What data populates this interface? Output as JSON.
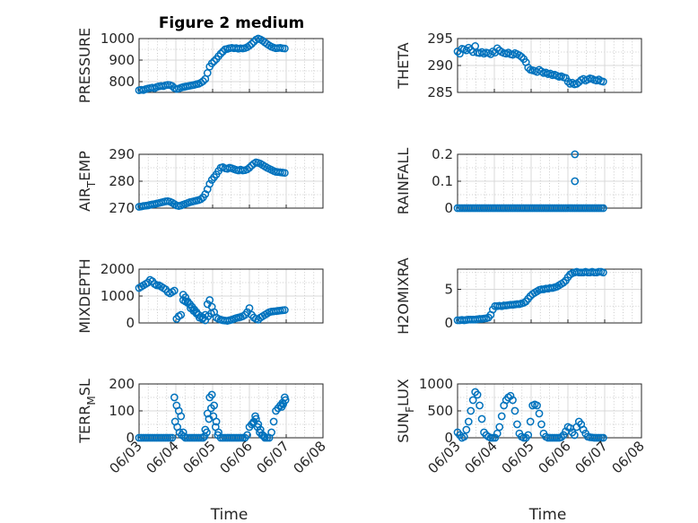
{
  "figure": {
    "title": "Figure 2 medium"
  },
  "x_axis": {
    "label": "Time",
    "ticks": [
      "06/03",
      "06/04",
      "06/05",
      "06/06",
      "06/07",
      "06/08"
    ],
    "range": [
      "06/03 00:00",
      "06/08 00:00"
    ]
  },
  "series_color": "#0072BD",
  "chart_data": [
    {
      "type": "scatter",
      "ylabel": "PRESSURE",
      "ylabel_parts": [
        "PRESSURE"
      ],
      "ylim": [
        750,
        1000
      ],
      "yticks": [
        800,
        900,
        1000
      ],
      "minor_y": [
        750,
        850,
        950
      ],
      "x_days": [
        0.0,
        0.06,
        0.12,
        0.18,
        0.24,
        0.3,
        0.36,
        0.42,
        0.48,
        0.54,
        0.6,
        0.66,
        0.72,
        0.78,
        0.84,
        0.9,
        0.96,
        1.02,
        1.08,
        1.14,
        1.2,
        1.26,
        1.32,
        1.38,
        1.44,
        1.5,
        1.56,
        1.62,
        1.68,
        1.74,
        1.8,
        1.86,
        1.92,
        1.98,
        2.04,
        2.1,
        2.16,
        2.22,
        2.28,
        2.34,
        2.4,
        2.46,
        2.52,
        2.58,
        2.64,
        2.7,
        2.76,
        2.82,
        2.88,
        2.94,
        3.0,
        3.06,
        3.12,
        3.18,
        3.24,
        3.3,
        3.36,
        3.42,
        3.48,
        3.54,
        3.6,
        3.66,
        3.72,
        3.78,
        3.84,
        3.9,
        3.96
      ],
      "y": [
        760,
        762,
        761,
        765,
        768,
        770,
        772,
        769,
        775,
        778,
        780,
        779,
        783,
        785,
        784,
        780,
        770,
        766,
        768,
        772,
        775,
        777,
        779,
        781,
        783,
        785,
        788,
        790,
        795,
        802,
        812,
        840,
        870,
        885,
        895,
        905,
        918,
        930,
        940,
        950,
        952,
        955,
        957,
        955,
        956,
        953,
        955,
        954,
        956,
        960,
        967,
        975,
        985,
        995,
        1000,
        996,
        990,
        982,
        975,
        968,
        962,
        958,
        955,
        956,
        957,
        955,
        954
      ]
    },
    {
      "type": "scatter",
      "ylabel": "THETA",
      "ylabel_parts": [
        "THETA"
      ],
      "ylim": [
        285,
        295
      ],
      "yticks": [
        285,
        290,
        295
      ],
      "minor_y": [
        287.5,
        292.5
      ],
      "x_days": [
        0.0,
        0.06,
        0.12,
        0.18,
        0.24,
        0.3,
        0.36,
        0.42,
        0.48,
        0.54,
        0.6,
        0.66,
        0.72,
        0.78,
        0.84,
        0.9,
        0.96,
        1.02,
        1.08,
        1.14,
        1.2,
        1.26,
        1.32,
        1.38,
        1.44,
        1.5,
        1.56,
        1.62,
        1.68,
        1.74,
        1.8,
        1.86,
        1.92,
        1.98,
        2.04,
        2.1,
        2.16,
        2.22,
        2.28,
        2.34,
        2.4,
        2.46,
        2.52,
        2.58,
        2.64,
        2.7,
        2.76,
        2.82,
        2.88,
        2.94,
        3.0,
        3.06,
        3.12,
        3.18,
        3.24,
        3.3,
        3.36,
        3.42,
        3.48,
        3.54,
        3.6,
        3.66,
        3.72,
        3.78,
        3.84,
        3.9,
        3.96
      ],
      "y": [
        292.6,
        292.2,
        293.1,
        293.0,
        292.8,
        293.3,
        292.9,
        292.5,
        293.6,
        292.4,
        292.3,
        292.5,
        292.2,
        292.4,
        292.3,
        292.1,
        292.6,
        292.4,
        293.2,
        292.8,
        292.5,
        292.3,
        292.2,
        292.4,
        292.1,
        292.0,
        292.3,
        292.1,
        291.9,
        291.6,
        291.2,
        290.6,
        289.6,
        289.2,
        289.1,
        289.0,
        288.8,
        289.2,
        288.9,
        288.6,
        288.7,
        288.4,
        288.5,
        288.2,
        288.3,
        288.1,
        287.9,
        288.0,
        287.8,
        287.7,
        287.0,
        286.6,
        286.8,
        286.5,
        286.6,
        286.9,
        287.3,
        287.5,
        287.2,
        287.4,
        287.6,
        287.5,
        287.3,
        287.2,
        287.4,
        287.1,
        287.0
      ]
    },
    {
      "type": "scatter",
      "ylabel": "AIR_TEMP",
      "ylabel_parts": [
        "AIR",
        "T",
        "EMP"
      ],
      "ylim": [
        270,
        290
      ],
      "yticks": [
        270,
        280,
        290
      ],
      "minor_y": [
        275,
        285
      ],
      "x_days": [
        0.0,
        0.06,
        0.12,
        0.18,
        0.24,
        0.3,
        0.36,
        0.42,
        0.48,
        0.54,
        0.6,
        0.66,
        0.72,
        0.78,
        0.84,
        0.9,
        0.96,
        1.02,
        1.08,
        1.14,
        1.2,
        1.26,
        1.32,
        1.38,
        1.44,
        1.5,
        1.56,
        1.62,
        1.68,
        1.74,
        1.8,
        1.86,
        1.92,
        1.98,
        2.04,
        2.1,
        2.16,
        2.22,
        2.28,
        2.34,
        2.4,
        2.46,
        2.52,
        2.58,
        2.64,
        2.7,
        2.76,
        2.82,
        2.88,
        2.94,
        3.0,
        3.06,
        3.12,
        3.18,
        3.24,
        3.3,
        3.36,
        3.42,
        3.48,
        3.54,
        3.6,
        3.66,
        3.72,
        3.78,
        3.84,
        3.9,
        3.96
      ],
      "y": [
        270.5,
        270.6,
        270.8,
        270.9,
        271.0,
        271.2,
        271.4,
        271.5,
        271.7,
        271.9,
        272.1,
        272.3,
        272.5,
        272.6,
        272.4,
        272.0,
        271.5,
        271.0,
        270.8,
        271.0,
        271.3,
        271.6,
        271.9,
        272.2,
        272.4,
        272.6,
        272.8,
        273.0,
        273.3,
        274.0,
        275.2,
        277.0,
        279.0,
        280.5,
        281.5,
        282.5,
        283.8,
        285.0,
        285.2,
        284.8,
        284.6,
        285.0,
        284.8,
        284.5,
        284.2,
        284.0,
        284.3,
        284.0,
        284.1,
        284.4,
        285.0,
        285.8,
        286.5,
        287.0,
        286.8,
        286.5,
        286.0,
        285.5,
        285.0,
        284.6,
        284.2,
        283.8,
        283.5,
        283.4,
        283.3,
        283.2,
        283.1
      ]
    },
    {
      "type": "scatter",
      "ylabel": "RAINFALL",
      "ylabel_parts": [
        "RAINFALL"
      ],
      "ylim": [
        0,
        0.2
      ],
      "yticks": [
        0,
        0.1,
        0.2
      ],
      "minor_y": [
        0.05,
        0.15
      ],
      "x_days": [
        0.0,
        0.06,
        0.12,
        0.18,
        0.24,
        0.3,
        0.36,
        0.42,
        0.48,
        0.54,
        0.6,
        0.66,
        0.72,
        0.78,
        0.84,
        0.9,
        0.96,
        1.02,
        1.08,
        1.14,
        1.2,
        1.26,
        1.32,
        1.38,
        1.44,
        1.5,
        1.56,
        1.62,
        1.68,
        1.74,
        1.8,
        1.86,
        1.92,
        1.98,
        2.04,
        2.1,
        2.16,
        2.22,
        2.28,
        2.34,
        2.4,
        2.46,
        2.52,
        2.58,
        2.64,
        2.7,
        2.76,
        2.82,
        2.88,
        2.94,
        3.0,
        3.06,
        3.12,
        3.18,
        3.24,
        3.3,
        3.36,
        3.42,
        3.48,
        3.54,
        3.6,
        3.66,
        3.72,
        3.78,
        3.84,
        3.9,
        3.96,
        3.19,
        3.19
      ],
      "y": [
        0,
        0,
        0,
        0,
        0,
        0,
        0,
        0,
        0,
        0,
        0,
        0,
        0,
        0,
        0,
        0,
        0,
        0,
        0,
        0,
        0,
        0,
        0,
        0,
        0,
        0,
        0,
        0,
        0,
        0,
        0,
        0,
        0,
        0,
        0,
        0,
        0,
        0,
        0,
        0,
        0,
        0,
        0,
        0,
        0,
        0,
        0,
        0,
        0,
        0,
        0,
        0,
        0,
        0,
        0,
        0,
        0,
        0,
        0,
        0,
        0,
        0,
        0,
        0,
        0,
        0,
        0,
        0.2,
        0.1
      ]
    },
    {
      "type": "scatter",
      "ylabel": "MIXDEPTH",
      "ylabel_parts": [
        "MIXDEPTH"
      ],
      "ylim": [
        0,
        2000
      ],
      "yticks": [
        0,
        1000,
        2000
      ],
      "minor_y": [
        500,
        1500
      ],
      "x_days": [
        0.0,
        0.06,
        0.12,
        0.18,
        0.24,
        0.3,
        0.36,
        0.42,
        0.48,
        0.54,
        0.6,
        0.66,
        0.72,
        0.78,
        0.84,
        0.9,
        0.96,
        1.02,
        1.08,
        1.14,
        1.2,
        1.26,
        1.32,
        1.38,
        1.44,
        1.5,
        1.56,
        1.62,
        1.68,
        1.74,
        1.8,
        1.86,
        1.92,
        1.98,
        2.04,
        2.1,
        2.16,
        2.22,
        2.28,
        2.34,
        2.4,
        2.46,
        2.52,
        2.58,
        2.64,
        2.7,
        2.76,
        2.82,
        2.88,
        2.94,
        3.0,
        3.06,
        3.12,
        3.18,
        3.24,
        3.3,
        3.36,
        3.42,
        3.48,
        3.54,
        3.6,
        3.66,
        3.72,
        3.78,
        3.84,
        3.9,
        3.96,
        1.2,
        1.26,
        1.32,
        1.4,
        1.48,
        1.56,
        1.64,
        1.72,
        1.8,
        1.88,
        1.96
      ],
      "y": [
        1300,
        1350,
        1400,
        1450,
        1500,
        1600,
        1550,
        1450,
        1400,
        1400,
        1350,
        1300,
        1250,
        1150,
        1100,
        1150,
        1200,
        150,
        250,
        300,
        850,
        800,
        750,
        700,
        600,
        500,
        400,
        300,
        250,
        200,
        300,
        700,
        850,
        600,
        400,
        200,
        150,
        120,
        100,
        90,
        80,
        100,
        120,
        150,
        180,
        200,
        220,
        250,
        300,
        400,
        550,
        300,
        200,
        150,
        120,
        200,
        250,
        300,
        350,
        400,
        420,
        430,
        440,
        450,
        460,
        470,
        480,
        1050,
        950,
        800,
        550,
        450,
        350,
        200,
        150,
        100,
        250,
        350
      ]
    },
    {
      "type": "scatter",
      "ylabel": "H2OMIXRA",
      "ylabel_parts": [
        "H2OMIXRA"
      ],
      "ylim": [
        0,
        8
      ],
      "yticks": [
        0,
        5
      ],
      "minor_y": [
        2.5,
        7.5
      ],
      "x_days": [
        0.0,
        0.06,
        0.12,
        0.18,
        0.24,
        0.3,
        0.36,
        0.42,
        0.48,
        0.54,
        0.6,
        0.66,
        0.72,
        0.78,
        0.84,
        0.9,
        0.96,
        1.02,
        1.08,
        1.14,
        1.2,
        1.26,
        1.32,
        1.38,
        1.44,
        1.5,
        1.56,
        1.62,
        1.68,
        1.74,
        1.8,
        1.86,
        1.92,
        1.98,
        2.04,
        2.1,
        2.16,
        2.22,
        2.28,
        2.34,
        2.4,
        2.46,
        2.52,
        2.58,
        2.64,
        2.7,
        2.76,
        2.82,
        2.88,
        2.94,
        3.0,
        3.06,
        3.12,
        3.18,
        3.24,
        3.3,
        3.36,
        3.42,
        3.48,
        3.54,
        3.6,
        3.66,
        3.72,
        3.78,
        3.84,
        3.9,
        3.96
      ],
      "y": [
        0.4,
        0.4,
        0.45,
        0.4,
        0.45,
        0.5,
        0.5,
        0.5,
        0.5,
        0.55,
        0.6,
        0.6,
        0.65,
        0.7,
        0.8,
        1.2,
        2.0,
        2.5,
        2.5,
        2.55,
        2.5,
        2.6,
        2.6,
        2.65,
        2.7,
        2.7,
        2.75,
        2.8,
        2.8,
        2.9,
        3.0,
        3.2,
        3.6,
        4.0,
        4.3,
        4.5,
        4.7,
        4.9,
        5.0,
        5.0,
        5.1,
        5.1,
        5.2,
        5.2,
        5.3,
        5.4,
        5.6,
        5.8,
        6.0,
        6.3,
        6.8,
        7.2,
        7.4,
        7.5,
        7.6,
        7.5,
        7.5,
        7.5,
        7.6,
        7.5,
        7.5,
        7.6,
        7.5,
        7.5,
        7.6,
        7.6,
        7.5
      ]
    },
    {
      "type": "scatter",
      "ylabel": "TERR_MSL",
      "ylabel_parts": [
        "TERR",
        "M",
        "SL"
      ],
      "ylim": [
        0,
        200
      ],
      "yticks": [
        0,
        100,
        200
      ],
      "minor_y": [
        50,
        150
      ],
      "x_days": [
        0.0,
        0.06,
        0.12,
        0.18,
        0.24,
        0.3,
        0.36,
        0.42,
        0.48,
        0.54,
        0.6,
        0.66,
        0.72,
        0.78,
        0.84,
        0.9,
        0.96,
        1.02,
        1.08,
        1.14,
        1.2,
        1.26,
        1.32,
        1.38,
        1.44,
        1.5,
        1.56,
        1.62,
        1.68,
        1.74,
        1.8,
        1.86,
        1.92,
        1.98,
        2.04,
        2.1,
        2.16,
        2.22,
        2.28,
        2.34,
        2.4,
        2.46,
        2.52,
        2.58,
        2.64,
        2.7,
        2.76,
        2.82,
        2.88,
        2.94,
        3.0,
        3.06,
        3.12,
        3.18,
        3.24,
        3.3,
        3.36,
        3.42,
        3.48,
        3.54,
        3.6,
        3.66,
        3.72,
        3.78,
        3.84,
        3.9,
        3.96,
        0.98,
        1.04,
        1.1,
        1.16,
        1.22,
        1.78,
        1.84,
        1.9,
        1.96,
        2.02,
        2.08,
        2.14,
        3.1,
        3.16,
        3.22,
        3.28,
        3.34,
        3.4,
        3.88,
        3.92,
        3.98
      ],
      "y": [
        0,
        0,
        0,
        0,
        0,
        0,
        0,
        0,
        0,
        0,
        0,
        0,
        0,
        0,
        0,
        0,
        150,
        120,
        100,
        80,
        20,
        0,
        0,
        0,
        0,
        0,
        0,
        0,
        0,
        0,
        30,
        90,
        150,
        160,
        120,
        60,
        20,
        0,
        0,
        0,
        0,
        0,
        0,
        0,
        0,
        0,
        0,
        0,
        0,
        10,
        40,
        50,
        60,
        70,
        50,
        30,
        10,
        0,
        0,
        0,
        20,
        60,
        100,
        110,
        120,
        130,
        150,
        60,
        40,
        20,
        10,
        5,
        5,
        20,
        70,
        110,
        80,
        40,
        10,
        55,
        80,
        40,
        20,
        10,
        5,
        115,
        125,
        140
      ]
    },
    {
      "type": "scatter",
      "ylabel": "SUN_FLUX",
      "ylabel_parts": [
        "SUN",
        "F",
        "LUX"
      ],
      "ylim": [
        0,
        1000
      ],
      "yticks": [
        0,
        500,
        1000
      ],
      "minor_y": [
        250,
        750
      ],
      "x_days": [
        0.0,
        0.06,
        0.12,
        0.18,
        0.24,
        0.3,
        0.36,
        0.42,
        0.48,
        0.54,
        0.6,
        0.66,
        0.72,
        0.78,
        0.84,
        0.9,
        0.96,
        1.02,
        1.08,
        1.14,
        1.2,
        1.26,
        1.32,
        1.38,
        1.44,
        1.5,
        1.56,
        1.62,
        1.68,
        1.74,
        1.8,
        1.86,
        1.92,
        1.98,
        2.04,
        2.1,
        2.16,
        2.22,
        2.28,
        2.34,
        2.4,
        2.46,
        2.52,
        2.58,
        2.64,
        2.7,
        2.76,
        2.82,
        2.88,
        2.94,
        3.0,
        3.06,
        3.12,
        3.18,
        3.24,
        3.3,
        3.36,
        3.42,
        3.48,
        3.54,
        3.6,
        3.66,
        3.72,
        3.78,
        3.84,
        3.9,
        3.96
      ],
      "y": [
        100,
        50,
        0,
        20,
        150,
        300,
        500,
        700,
        850,
        800,
        600,
        350,
        100,
        50,
        20,
        0,
        0,
        0,
        80,
        200,
        400,
        600,
        700,
        750,
        780,
        700,
        500,
        250,
        80,
        20,
        0,
        0,
        50,
        300,
        600,
        620,
        600,
        450,
        250,
        80,
        20,
        0,
        0,
        0,
        0,
        0,
        0,
        10,
        50,
        120,
        200,
        180,
        100,
        50,
        200,
        300,
        250,
        150,
        80,
        20,
        10,
        5,
        0,
        0,
        0,
        0,
        0
      ]
    }
  ]
}
